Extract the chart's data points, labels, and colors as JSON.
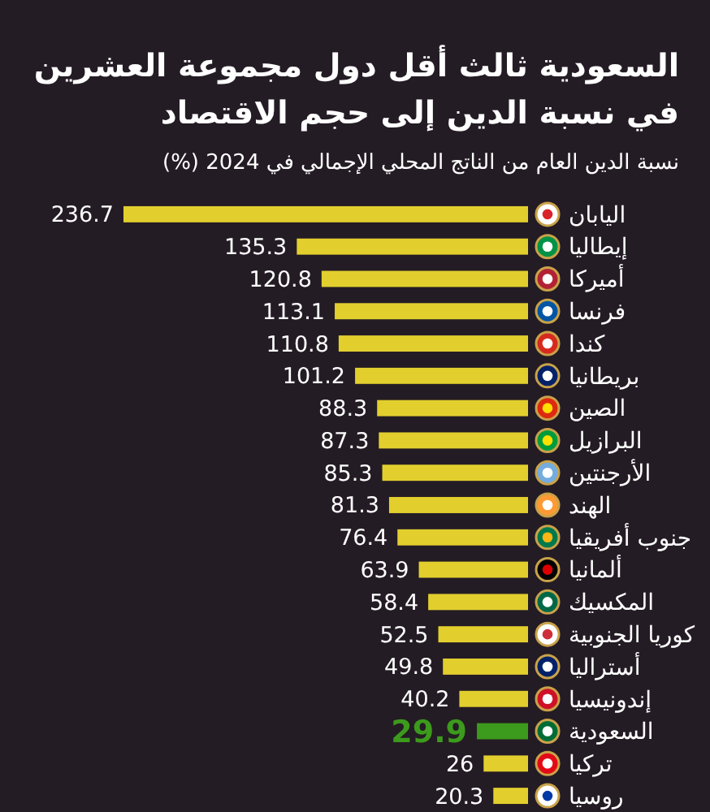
{
  "chart_data": {
    "type": "bar",
    "orientation": "horizontal",
    "title": "السعودية ثالث أقل دول مجموعة العشرين\nفي نسبة الدين إلى حجم الاقتصاد",
    "subtitle": "نسبة الدين العام من الناتج المحلي الإجمالي في 2024 (%)",
    "categories": [
      "اليابان",
      "إيطاليا",
      "أميركا",
      "فرنسا",
      "كندا",
      "بريطانيا",
      "الصين",
      "البرازيل",
      "الأرجنتين",
      "الهند",
      "جنوب أفريقيا",
      "ألمانيا",
      "المكسيك",
      "كوريا الجنوبية",
      "أستراليا",
      "إندونيسيا",
      "السعودية",
      "تركيا",
      "روسيا"
    ],
    "values": [
      236.7,
      135.3,
      120.8,
      113.1,
      110.8,
      101.2,
      88.3,
      87.3,
      85.3,
      81.3,
      76.4,
      63.9,
      58.4,
      52.5,
      49.8,
      40.2,
      29.9,
      26,
      20.3
    ],
    "colors": [
      "#e2cf2e",
      "#e2cf2e",
      "#e2cf2e",
      "#e2cf2e",
      "#e2cf2e",
      "#e2cf2e",
      "#e2cf2e",
      "#e2cf2e",
      "#e2cf2e",
      "#e2cf2e",
      "#e2cf2e",
      "#e2cf2e",
      "#e2cf2e",
      "#e2cf2e",
      "#e2cf2e",
      "#e2cf2e",
      "#3c9a1c",
      "#e2cf2e",
      "#e2cf2e"
    ],
    "data_labels": true
  }
}
